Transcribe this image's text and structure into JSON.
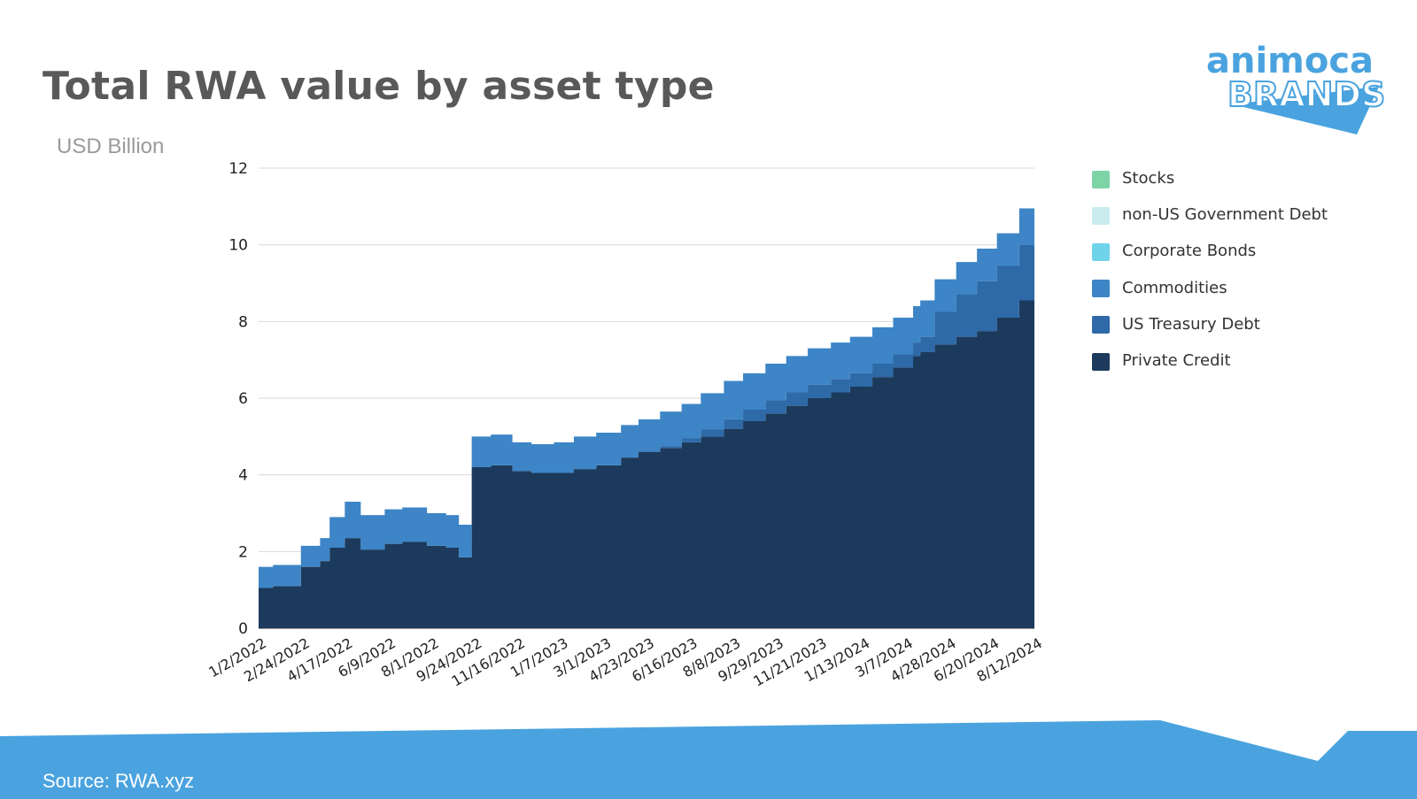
{
  "header": {
    "title": "Total RWA value by asset type",
    "unit_label": "USD Billion"
  },
  "footer": {
    "source": "Source: RWA.xyz"
  },
  "logo": {
    "line1": "animoca",
    "line2": "BRANDS",
    "color": "#4aa3df"
  },
  "theme": {
    "footer_band_color": "#4aa3df",
    "gridline_color": "#d9d9d9",
    "axis_text_color": "#222222"
  },
  "chart_data": {
    "type": "area",
    "stacked": true,
    "title": "Total RWA value by asset type",
    "ylabel": "USD Billion",
    "xlabel": "",
    "ylim": [
      0,
      12
    ],
    "y_ticks": [
      0,
      2,
      4,
      6,
      8,
      10,
      12
    ],
    "grid": true,
    "legend_position": "right",
    "x_tick_labels": [
      "1/2/2022",
      "2/24/2022",
      "4/17/2022",
      "6/9/2022",
      "8/1/2022",
      "9/24/2022",
      "11/16/2022",
      "1/7/2023",
      "3/1/2023",
      "4/23/2023",
      "6/16/2023",
      "8/8/2023",
      "9/29/2023",
      "11/21/2023",
      "1/13/2024",
      "3/7/2024",
      "4/28/2024",
      "6/20/2024",
      "8/12/2024"
    ],
    "x": [
      "2022-01-02",
      "2022-01-20",
      "2022-02-24",
      "2022-03-20",
      "2022-04-01",
      "2022-04-20",
      "2022-05-10",
      "2022-06-09",
      "2022-07-01",
      "2022-08-01",
      "2022-08-25",
      "2022-09-10",
      "2022-09-24",
      "2022-09-26",
      "2022-10-20",
      "2022-11-16",
      "2022-12-10",
      "2023-01-07",
      "2023-02-01",
      "2023-03-01",
      "2023-04-01",
      "2023-04-23",
      "2023-05-20",
      "2023-06-16",
      "2023-07-10",
      "2023-08-08",
      "2023-09-01",
      "2023-09-29",
      "2023-10-25",
      "2023-11-21",
      "2023-12-20",
      "2024-01-13",
      "2024-02-10",
      "2024-03-07",
      "2024-04-01",
      "2024-04-10",
      "2024-04-28",
      "2024-05-25",
      "2024-06-20",
      "2024-07-15",
      "2024-08-12",
      "2024-08-31"
    ],
    "series": [
      {
        "name": "Private Credit",
        "color": "#1c3a5c",
        "values": [
          1.05,
          1.1,
          1.6,
          1.75,
          2.1,
          2.35,
          2.05,
          2.2,
          2.25,
          2.15,
          2.1,
          1.85,
          1.85,
          4.2,
          4.25,
          4.1,
          4.05,
          4.05,
          4.15,
          4.25,
          4.45,
          4.6,
          4.7,
          4.85,
          5.0,
          5.2,
          5.4,
          5.6,
          5.8,
          6.0,
          6.15,
          6.3,
          6.55,
          6.8,
          7.1,
          7.2,
          7.4,
          7.6,
          7.75,
          8.1,
          8.55,
          8.95
        ]
      },
      {
        "name": "US Treasury Debt",
        "color": "#2e6aa8",
        "values": [
          0.0,
          0.0,
          0.0,
          0.0,
          0.0,
          0.0,
          0.0,
          0.0,
          0.0,
          0.0,
          0.0,
          0.0,
          0.0,
          0.0,
          0.0,
          0.0,
          0.0,
          0.0,
          0.0,
          0.0,
          0.0,
          0.0,
          0.05,
          0.1,
          0.18,
          0.25,
          0.3,
          0.35,
          0.35,
          0.35,
          0.35,
          0.35,
          0.35,
          0.35,
          0.35,
          0.4,
          0.85,
          1.1,
          1.3,
          1.35,
          1.45,
          1.55
        ]
      },
      {
        "name": "Commodities",
        "color": "#3d85c6",
        "values": [
          0.55,
          0.55,
          0.55,
          0.6,
          0.8,
          0.95,
          0.9,
          0.9,
          0.9,
          0.85,
          0.85,
          0.85,
          0.85,
          0.8,
          0.8,
          0.75,
          0.75,
          0.8,
          0.85,
          0.85,
          0.85,
          0.85,
          0.9,
          0.9,
          0.95,
          1.0,
          0.95,
          0.95,
          0.95,
          0.95,
          0.95,
          0.95,
          0.95,
          0.95,
          0.95,
          0.95,
          0.85,
          0.85,
          0.85,
          0.85,
          0.95,
          1.05
        ]
      },
      {
        "name": "Corporate Bonds",
        "color": "#6fd3ea",
        "values": [
          0.0,
          0.0,
          0.0,
          0.0,
          0.0,
          0.0,
          0.0,
          0.0,
          0.0,
          0.0,
          0.0,
          0.0,
          0.0,
          0.0,
          0.0,
          0.0,
          0.0,
          0.0,
          0.0,
          0.0,
          0.0,
          0.0,
          0.0,
          0.0,
          0.0,
          0.0,
          0.0,
          0.0,
          0.0,
          0.0,
          0.0,
          0.0,
          0.0,
          0.0,
          0.0,
          0.0,
          0.0,
          0.0,
          0.0,
          0.0,
          0.0,
          0.0
        ]
      },
      {
        "name": "non-US Government Debt",
        "color": "#c8ecee",
        "values": [
          0.0,
          0.0,
          0.0,
          0.0,
          0.0,
          0.0,
          0.0,
          0.0,
          0.0,
          0.0,
          0.0,
          0.0,
          0.0,
          0.0,
          0.0,
          0.0,
          0.0,
          0.0,
          0.0,
          0.0,
          0.0,
          0.0,
          0.0,
          0.0,
          0.0,
          0.0,
          0.0,
          0.0,
          0.0,
          0.0,
          0.0,
          0.0,
          0.0,
          0.0,
          0.0,
          0.0,
          0.0,
          0.0,
          0.0,
          0.0,
          0.0,
          0.0
        ]
      },
      {
        "name": "Stocks",
        "color": "#7dd4a7",
        "values": [
          0.0,
          0.0,
          0.0,
          0.0,
          0.0,
          0.0,
          0.0,
          0.0,
          0.0,
          0.0,
          0.0,
          0.0,
          0.0,
          0.0,
          0.0,
          0.0,
          0.0,
          0.0,
          0.0,
          0.0,
          0.0,
          0.0,
          0.0,
          0.0,
          0.0,
          0.0,
          0.0,
          0.0,
          0.0,
          0.0,
          0.0,
          0.0,
          0.0,
          0.0,
          0.0,
          0.0,
          0.0,
          0.0,
          0.0,
          0.0,
          0.0,
          0.0
        ]
      }
    ],
    "legend_order": [
      "Stocks",
      "non-US Government Debt",
      "Corporate Bonds",
      "Commodities",
      "US Treasury Debt",
      "Private Credit"
    ]
  }
}
